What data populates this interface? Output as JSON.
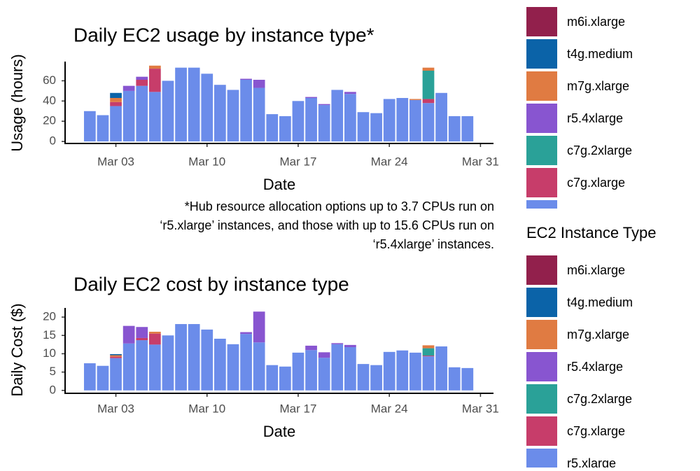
{
  "chart_data": [
    {
      "type": "bar",
      "stacked": true,
      "title": "Daily EC2 usage by instance type*",
      "x_label": "Date",
      "y_label": "Usage (hours)",
      "caption_lines": [
        "*Hub resource allocation options up to 3.7 CPUs run on",
        "‘r5.xlarge’ instances, and those with up to 15.6 CPUs run on",
        "‘r5.4xlarge’ instances."
      ],
      "x": [
        1,
        2,
        3,
        4,
        5,
        6,
        7,
        8,
        9,
        10,
        11,
        12,
        13,
        14,
        15,
        16,
        17,
        18,
        19,
        20,
        21,
        22,
        23,
        24,
        25,
        26,
        27,
        28,
        29,
        30
      ],
      "xlim": [
        -0.9,
        32
      ],
      "xticks": [
        {
          "value": 3,
          "label": "Mar 03"
        },
        {
          "value": 10,
          "label": "Mar 10"
        },
        {
          "value": 17,
          "label": "Mar 17"
        },
        {
          "value": 24,
          "label": "Mar 24"
        },
        {
          "value": 31,
          "label": "Mar 31"
        }
      ],
      "ylim": [
        -2,
        79
      ],
      "yticks": [
        0,
        20,
        40,
        60
      ],
      "series": [
        {
          "name": "m6i.xlarge",
          "color": "#92204c",
          "values": [
            0,
            0,
            0,
            0,
            0,
            0,
            0,
            0,
            0,
            0,
            0,
            0,
            0,
            0,
            0,
            0,
            0,
            0,
            0,
            0,
            0,
            0,
            0,
            0,
            0,
            0,
            0,
            0,
            0,
            0
          ]
        },
        {
          "name": "t4g.medium",
          "color": "#0b63a8",
          "values": [
            0,
            0,
            5,
            0,
            0,
            0,
            0,
            0,
            0,
            0,
            0,
            0,
            0,
            0,
            0,
            0,
            0,
            0,
            0,
            0,
            0,
            0,
            0,
            0,
            0,
            0,
            0,
            0,
            0,
            0
          ]
        },
        {
          "name": "m7g.xlarge",
          "color": "#e07b42",
          "values": [
            0,
            0,
            4,
            0,
            0,
            3,
            0,
            0,
            0,
            0,
            0,
            0,
            0,
            0,
            0,
            0,
            0,
            0,
            0,
            0,
            0,
            0,
            0,
            0,
            0,
            1,
            3,
            0,
            0,
            0
          ]
        },
        {
          "name": "r5.4xlarge",
          "color": "#8855d0",
          "values": [
            0,
            0,
            0,
            5,
            3,
            0,
            0,
            0,
            0,
            0,
            0,
            0,
            1,
            8,
            0,
            0,
            0,
            1,
            1,
            0,
            2,
            0,
            0,
            0,
            0,
            0,
            0,
            0,
            0,
            0
          ]
        },
        {
          "name": "c7g.2xlarge",
          "color": "#2aa198",
          "values": [
            0,
            0,
            0,
            0,
            0,
            0,
            0,
            0,
            0,
            0,
            0,
            0,
            0,
            0,
            0,
            0,
            0,
            0,
            0,
            0,
            0,
            0,
            0,
            0,
            0,
            0,
            28,
            0,
            0,
            0
          ]
        },
        {
          "name": "c7g.xlarge",
          "color": "#c73d6a",
          "values": [
            0,
            0,
            4,
            0,
            6,
            23,
            0,
            0,
            0,
            0,
            0,
            0,
            0,
            0,
            0,
            0,
            0,
            0,
            0,
            0,
            0,
            0,
            0,
            0,
            0,
            0,
            4,
            0,
            0,
            0
          ]
        },
        {
          "name": "r5.xlarge",
          "color": "#6b8cea",
          "values": [
            30,
            26,
            35,
            50,
            55,
            49,
            60,
            73,
            73,
            67,
            56,
            51,
            61,
            53,
            27,
            25,
            40,
            43,
            36,
            51,
            47,
            29,
            28,
            42,
            43,
            41,
            38,
            48,
            25,
            25
          ]
        }
      ]
    },
    {
      "type": "bar",
      "stacked": true,
      "title": "Daily EC2 cost by instance type",
      "x_label": "Date",
      "y_label": "Daily Cost ($)",
      "legend_title": "EC2 Instance Type",
      "x": [
        1,
        2,
        3,
        4,
        5,
        6,
        7,
        8,
        9,
        10,
        11,
        12,
        13,
        14,
        15,
        16,
        17,
        18,
        19,
        20,
        21,
        22,
        23,
        24,
        25,
        26,
        27,
        28,
        29,
        30
      ],
      "xlim": [
        -0.9,
        32
      ],
      "xticks": [
        {
          "value": 3,
          "label": "Mar 03"
        },
        {
          "value": 10,
          "label": "Mar 10"
        },
        {
          "value": 17,
          "label": "Mar 17"
        },
        {
          "value": 24,
          "label": "Mar 24"
        },
        {
          "value": 31,
          "label": "Mar 31"
        }
      ],
      "ylim": [
        -0.8,
        22.5
      ],
      "yticks": [
        0,
        5,
        10,
        15,
        20
      ],
      "series": [
        {
          "name": "m6i.xlarge",
          "color": "#92204c",
          "values": [
            0,
            0,
            0,
            0,
            0,
            0,
            0,
            0,
            0,
            0,
            0,
            0,
            0,
            0,
            0,
            0,
            0,
            0,
            0,
            0,
            0,
            0,
            0,
            0,
            0,
            0,
            0,
            0,
            0,
            0
          ]
        },
        {
          "name": "t4g.medium",
          "color": "#0b63a8",
          "values": [
            0,
            0,
            0.3,
            0,
            0,
            0,
            0,
            0,
            0,
            0,
            0,
            0,
            0,
            0,
            0,
            0,
            0,
            0,
            0,
            0,
            0,
            0,
            0,
            0,
            0,
            0,
            0,
            0,
            0,
            0
          ]
        },
        {
          "name": "m7g.xlarge",
          "color": "#e07b42",
          "values": [
            0,
            0,
            0.4,
            0,
            0,
            0.5,
            0,
            0,
            0,
            0,
            0,
            0,
            0,
            0,
            0,
            0,
            0,
            0,
            0,
            0,
            0,
            0,
            0,
            0,
            0,
            0,
            0.8,
            0,
            0,
            0
          ]
        },
        {
          "name": "r5.4xlarge",
          "color": "#8855d0",
          "values": [
            0,
            0,
            0,
            4.8,
            3,
            0,
            0,
            0,
            0,
            0,
            0,
            0,
            0.5,
            8.4,
            0,
            0,
            0,
            1.2,
            1.5,
            0.3,
            0.6,
            0,
            0,
            0,
            0,
            0,
            0,
            0,
            0,
            0
          ]
        },
        {
          "name": "c7g.2xlarge",
          "color": "#2aa198",
          "values": [
            0,
            0,
            0,
            0,
            0,
            0,
            0,
            0,
            0,
            0,
            0,
            0,
            0,
            0,
            0,
            0,
            0,
            0,
            0,
            0,
            0,
            0,
            0,
            0,
            0,
            0,
            2,
            0,
            0,
            0
          ]
        },
        {
          "name": "c7g.xlarge",
          "color": "#c73d6a",
          "values": [
            0,
            0,
            0.4,
            0,
            0.6,
            3,
            0,
            0,
            0,
            0,
            0,
            0,
            0,
            0,
            0,
            0,
            0,
            0,
            0,
            0,
            0,
            0,
            0,
            0,
            0,
            0,
            0.2,
            0,
            0,
            0
          ]
        },
        {
          "name": "r5.xlarge",
          "color": "#6b8cea",
          "values": [
            7.4,
            6.7,
            8.8,
            12.8,
            13.7,
            12.5,
            15,
            18.1,
            18.1,
            16.6,
            14.1,
            12.6,
            15.4,
            13.1,
            6.9,
            6.5,
            10.3,
            11,
            8.9,
            12.6,
            11.8,
            7.2,
            6.9,
            10.5,
            10.9,
            10.3,
            9.3,
            12,
            6.3,
            6.1
          ]
        }
      ]
    }
  ]
}
